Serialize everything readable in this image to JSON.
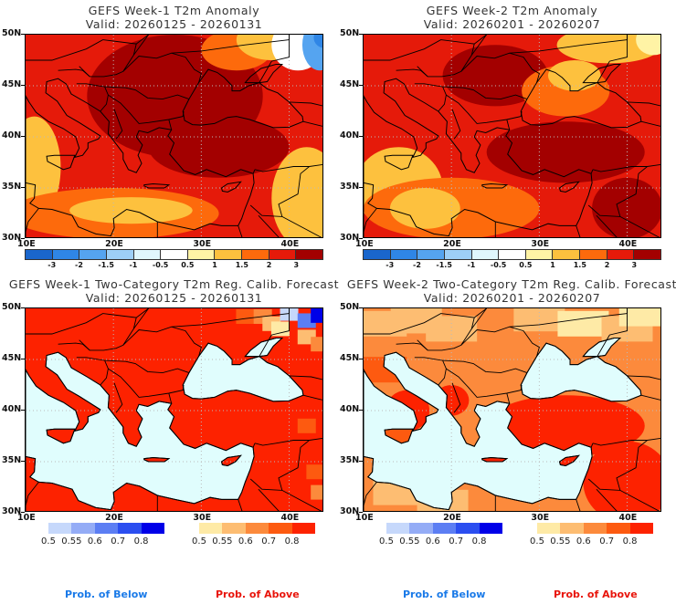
{
  "panels": [
    {
      "id": "w1-anom",
      "title": "GEFS Week-1 T2m Anomaly",
      "valid": "Valid: 20260125 - 20260131",
      "kind": "anomaly"
    },
    {
      "id": "w2-anom",
      "title": "GEFS Week-2 T2m Anomaly",
      "valid": "Valid: 20260201 - 20260207",
      "kind": "anomaly"
    },
    {
      "id": "w1-prob",
      "title": "GEFS Week-1 Two-Category T2m Reg. Calib. Forecast",
      "valid": "Valid: 20260125 - 20260131",
      "kind": "prob"
    },
    {
      "id": "w2-prob",
      "title": "GEFS Week-2 Two-Category T2m Reg. Calib. Forecast",
      "valid": "Valid: 20260201 - 20260207",
      "kind": "prob"
    }
  ],
  "axes": {
    "lat_labels": [
      "50N",
      "45N",
      "40N",
      "35N",
      "30N"
    ],
    "lon_labels": [
      "10E",
      "20E",
      "30E",
      "40E"
    ]
  },
  "anomaly_colorbar": {
    "colors": [
      "#1a66cc",
      "#2f86e6",
      "#55a4f0",
      "#9dcff7",
      "#e0f7fd",
      "#ffffff",
      "#fff3a5",
      "#fdc13e",
      "#fd6a0c",
      "#e51a0a",
      "#a30000"
    ],
    "labels": [
      "-3",
      "-2",
      "-1.5",
      "-1",
      "-0.5",
      "0.5",
      "1",
      "1.5",
      "2",
      "3"
    ]
  },
  "prob_below_colorbar": {
    "colors": [
      "#c6d8fb",
      "#94acf6",
      "#5c7ef3",
      "#2b4ef0",
      "#0000e8"
    ],
    "labels": [
      "0.5",
      "0.55",
      "0.6",
      "0.7",
      "0.8"
    ]
  },
  "prob_above_colorbar": {
    "colors": [
      "#feeaa6",
      "#fdbd72",
      "#fc8a3c",
      "#fd5a10",
      "#fd2200"
    ],
    "labels": [
      "0.5",
      "0.55",
      "0.6",
      "0.7",
      "0.8"
    ]
  },
  "footer": {
    "below_label": "Prob. of Below",
    "above_label": "Prob. of Above",
    "below_color": "#1a7ae8",
    "above_color": "#e8140a"
  },
  "colors": {
    "sea_prob": "#e0fdfd",
    "anom_dark": "#a30000",
    "anom_red": "#e51a0a",
    "anom_orange": "#fd6a0c",
    "anom_gold": "#fdc13e",
    "prob_red": "#fd2200"
  }
}
